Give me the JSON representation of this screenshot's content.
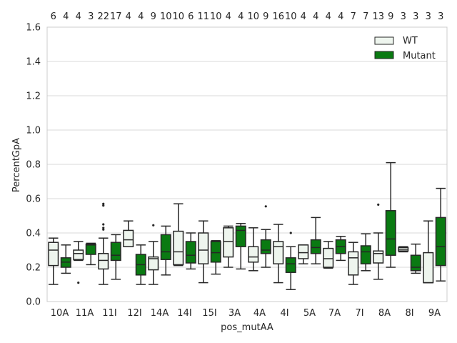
{
  "chart_data": {
    "type": "boxplot",
    "xlabel": "pos_mutAA",
    "ylabel": "PercentGpA",
    "ylim": [
      0,
      1.6
    ],
    "yticks": [
      "0.0",
      "0.2",
      "0.4",
      "0.6",
      "0.8",
      "1.0",
      "1.2",
      "1.4",
      "1.6"
    ],
    "categories": [
      "10A",
      "11A",
      "11I",
      "12I",
      "14A",
      "14I",
      "15I",
      "3A",
      "4A",
      "4I",
      "5A",
      "7A",
      "7I",
      "8A",
      "8I",
      "9A"
    ],
    "grid": true,
    "legend_position": "upper-right",
    "colors": {
      "WT": "#eef5ee",
      "Mutant": "#0a7a12",
      "edge": "#262626",
      "grid": "#d9d9d9"
    },
    "legend": [
      {
        "name": "WT",
        "color": "#eef5ee"
      },
      {
        "name": "Mutant",
        "color": "#0a7a12"
      }
    ],
    "counts": [
      [
        "6",
        "4"
      ],
      [
        "4",
        "3"
      ],
      [
        "22",
        "17"
      ],
      [
        "4",
        "4"
      ],
      [
        "9",
        "10"
      ],
      [
        "10",
        "6"
      ],
      [
        "11",
        "10"
      ],
      [
        "4",
        "4"
      ],
      [
        "10",
        "9"
      ],
      [
        "16",
        "10"
      ],
      [
        "4",
        "4"
      ],
      [
        "4",
        "4"
      ],
      [
        "7",
        "7"
      ],
      [
        "13",
        "9"
      ],
      [
        "3",
        "3"
      ],
      [
        "3",
        "3"
      ]
    ],
    "series": [
      {
        "name": "WT",
        "boxes": [
          {
            "q1": 0.21,
            "med": 0.3,
            "q3": 0.345,
            "wlo": 0.1,
            "whi": 0.37,
            "fliers": []
          },
          {
            "q1": 0.245,
            "med": 0.28,
            "q3": 0.3,
            "wlo": 0.24,
            "whi": 0.35,
            "fliers": [
              0.11
            ]
          },
          {
            "q1": 0.19,
            "med": 0.24,
            "q3": 0.28,
            "wlo": 0.1,
            "whi": 0.37,
            "fliers": [
              0.42,
              0.43,
              0.45,
              0.56,
              0.57
            ]
          },
          {
            "q1": 0.32,
            "med": 0.36,
            "q3": 0.415,
            "wlo": 0.32,
            "whi": 0.47,
            "fliers": []
          },
          {
            "q1": 0.185,
            "med": 0.25,
            "q3": 0.26,
            "wlo": 0.1,
            "whi": 0.35,
            "fliers": [
              0.445
            ]
          },
          {
            "q1": 0.215,
            "med": 0.29,
            "q3": 0.41,
            "wlo": 0.21,
            "whi": 0.57,
            "fliers": []
          },
          {
            "q1": 0.22,
            "med": 0.3,
            "q3": 0.4,
            "wlo": 0.11,
            "whi": 0.47,
            "fliers": []
          },
          {
            "q1": 0.26,
            "med": 0.35,
            "q3": 0.43,
            "wlo": 0.2,
            "whi": 0.44,
            "fliers": []
          },
          {
            "q1": 0.23,
            "med": 0.26,
            "q3": 0.32,
            "wlo": 0.18,
            "whi": 0.43,
            "fliers": []
          },
          {
            "q1": 0.22,
            "med": 0.32,
            "q3": 0.35,
            "wlo": 0.11,
            "whi": 0.45,
            "fliers": []
          },
          {
            "q1": 0.25,
            "med": 0.285,
            "q3": 0.33,
            "wlo": 0.22,
            "whi": 0.33,
            "fliers": []
          },
          {
            "q1": 0.2,
            "med": 0.25,
            "q3": 0.31,
            "wlo": 0.195,
            "whi": 0.35,
            "fliers": []
          },
          {
            "q1": 0.155,
            "med": 0.255,
            "q3": 0.29,
            "wlo": 0.1,
            "whi": 0.345,
            "fliers": []
          },
          {
            "q1": 0.225,
            "med": 0.28,
            "q3": 0.295,
            "wlo": 0.13,
            "whi": 0.4,
            "fliers": [
              0.565
            ]
          },
          {
            "q1": 0.295,
            "med": 0.305,
            "q3": 0.315,
            "wlo": 0.29,
            "whi": 0.32,
            "fliers": []
          },
          {
            "q1": 0.11,
            "med": 0.11,
            "q3": 0.285,
            "wlo": 0.11,
            "whi": 0.47,
            "fliers": []
          }
        ]
      },
      {
        "name": "Mutant",
        "boxes": [
          {
            "q1": 0.2,
            "med": 0.23,
            "q3": 0.255,
            "wlo": 0.165,
            "whi": 0.33,
            "fliers": []
          },
          {
            "q1": 0.275,
            "med": 0.33,
            "q3": 0.335,
            "wlo": 0.215,
            "whi": 0.34,
            "fliers": []
          },
          {
            "q1": 0.24,
            "med": 0.27,
            "q3": 0.345,
            "wlo": 0.13,
            "whi": 0.39,
            "fliers": []
          },
          {
            "q1": 0.155,
            "med": 0.215,
            "q3": 0.275,
            "wlo": 0.1,
            "whi": 0.33,
            "fliers": []
          },
          {
            "q1": 0.245,
            "med": 0.29,
            "q3": 0.39,
            "wlo": 0.155,
            "whi": 0.44,
            "fliers": []
          },
          {
            "q1": 0.225,
            "med": 0.27,
            "q3": 0.35,
            "wlo": 0.19,
            "whi": 0.4,
            "fliers": []
          },
          {
            "q1": 0.23,
            "med": 0.285,
            "q3": 0.35,
            "wlo": 0.16,
            "whi": 0.355,
            "fliers": []
          },
          {
            "q1": 0.32,
            "med": 0.415,
            "q3": 0.44,
            "wlo": 0.19,
            "whi": 0.455,
            "fliers": []
          },
          {
            "q1": 0.28,
            "med": 0.3,
            "q3": 0.36,
            "wlo": 0.2,
            "whi": 0.42,
            "fliers": [
              0.555
            ]
          },
          {
            "q1": 0.17,
            "med": 0.22,
            "q3": 0.255,
            "wlo": 0.07,
            "whi": 0.32,
            "fliers": [
              0.4
            ]
          },
          {
            "q1": 0.28,
            "med": 0.315,
            "q3": 0.36,
            "wlo": 0.22,
            "whi": 0.49,
            "fliers": []
          },
          {
            "q1": 0.28,
            "med": 0.32,
            "q3": 0.36,
            "wlo": 0.24,
            "whi": 0.38,
            "fliers": []
          },
          {
            "q1": 0.22,
            "med": 0.29,
            "q3": 0.325,
            "wlo": 0.18,
            "whi": 0.395,
            "fliers": []
          },
          {
            "q1": 0.27,
            "med": 0.365,
            "q3": 0.53,
            "wlo": 0.2,
            "whi": 0.81,
            "fliers": []
          },
          {
            "q1": 0.18,
            "med": 0.2,
            "q3": 0.27,
            "wlo": 0.165,
            "whi": 0.335,
            "fliers": []
          },
          {
            "q1": 0.21,
            "med": 0.32,
            "q3": 0.49,
            "wlo": 0.12,
            "whi": 0.66,
            "fliers": []
          }
        ]
      }
    ]
  }
}
